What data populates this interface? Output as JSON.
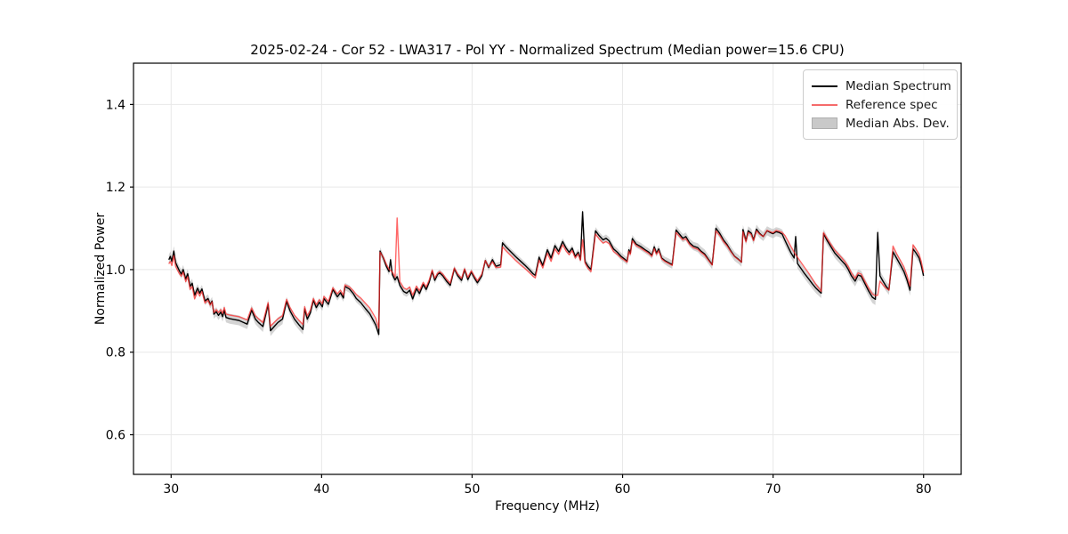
{
  "title": "2025-02-24 - Cor 52 - LWA317 - Pol YY - Normalized Spectrum (Median power=15.6 CPU)",
  "colors": {
    "median_line": "#000000",
    "reference_line": "#ff2b2b",
    "reference_legend": "#f56b6b",
    "mad_band": "#aaaaaa",
    "grid": "#e8e8e8",
    "spine": "#000000",
    "background": "#ffffff"
  },
  "chart_data": {
    "type": "line",
    "title": "2025-02-24 - Cor 52 - LWA317 - Pol YY - Normalized Spectrum (Median power=15.6 CPU)",
    "xlabel": "Frequency (MHz)",
    "ylabel": "Normalized Power",
    "xlim": [
      27.5,
      82.5
    ],
    "ylim": [
      0.504,
      1.5
    ],
    "x_ticks": [
      30,
      40,
      50,
      60,
      70,
      80
    ],
    "x_tick_labels": [
      "30",
      "40",
      "50",
      "60",
      "70",
      "80"
    ],
    "y_ticks": [
      0.6,
      0.8,
      1.0,
      1.2,
      1.4
    ],
    "y_tick_labels": [
      "0.6",
      "0.8",
      "1.0",
      "1.2",
      "1.4"
    ],
    "grid": true,
    "legend_position": "upper right",
    "series": [
      {
        "name": "Median Spectrum",
        "color": "#000000",
        "style": "line"
      },
      {
        "name": "Reference spec",
        "color": "#f56b6b",
        "style": "line"
      },
      {
        "name": "Median Abs. Dev.",
        "color": "#c9c9c9",
        "style": "band"
      }
    ],
    "point_format": [
      "freq_mhz",
      "median",
      "reference",
      "mad"
    ],
    "points": [
      [
        29.85,
        1.024,
        1.014,
        0.012
      ],
      [
        29.95,
        1.032,
        1.02,
        0.012
      ],
      [
        30.05,
        1.02,
        1.01,
        0.012
      ],
      [
        30.18,
        1.045,
        1.034,
        0.012
      ],
      [
        30.3,
        1.017,
        1.008,
        0.012
      ],
      [
        30.42,
        1.007,
        0.999,
        0.011
      ],
      [
        30.55,
        0.997,
        0.99,
        0.011
      ],
      [
        30.68,
        0.989,
        0.984,
        0.011
      ],
      [
        30.8,
        1.0,
        0.994,
        0.011
      ],
      [
        30.97,
        0.977,
        0.971,
        0.011
      ],
      [
        31.1,
        0.99,
        0.983,
        0.011
      ],
      [
        31.26,
        0.959,
        0.952,
        0.011
      ],
      [
        31.4,
        0.967,
        0.959,
        0.011
      ],
      [
        31.56,
        0.938,
        0.929,
        0.011
      ],
      [
        31.76,
        0.955,
        0.947,
        0.01
      ],
      [
        31.9,
        0.943,
        0.936,
        0.01
      ],
      [
        32.05,
        0.953,
        0.947,
        0.01
      ],
      [
        32.25,
        0.924,
        0.919,
        0.01
      ],
      [
        32.45,
        0.93,
        0.926,
        0.01
      ],
      [
        32.6,
        0.916,
        0.914,
        0.01
      ],
      [
        32.72,
        0.924,
        0.922,
        0.01
      ],
      [
        32.84,
        0.892,
        0.896,
        0.011
      ],
      [
        33.0,
        0.898,
        0.903,
        0.011
      ],
      [
        33.15,
        0.889,
        0.896,
        0.011
      ],
      [
        33.3,
        0.897,
        0.903,
        0.011
      ],
      [
        33.42,
        0.886,
        0.894,
        0.012
      ],
      [
        33.53,
        0.902,
        0.908,
        0.012
      ],
      [
        33.65,
        0.884,
        0.892,
        0.012
      ],
      [
        33.9,
        0.881,
        0.89,
        0.012
      ],
      [
        34.2,
        0.879,
        0.888,
        0.012
      ],
      [
        34.5,
        0.877,
        0.886,
        0.012
      ],
      [
        34.8,
        0.872,
        0.882,
        0.012
      ],
      [
        35.05,
        0.868,
        0.878,
        0.012
      ],
      [
        35.35,
        0.902,
        0.907,
        0.012
      ],
      [
        35.6,
        0.88,
        0.888,
        0.012
      ],
      [
        35.8,
        0.872,
        0.881,
        0.012
      ],
      [
        36.1,
        0.862,
        0.872,
        0.013
      ],
      [
        36.45,
        0.916,
        0.92,
        0.012
      ],
      [
        36.6,
        0.852,
        0.863,
        0.013
      ],
      [
        36.85,
        0.862,
        0.872,
        0.012
      ],
      [
        37.1,
        0.872,
        0.881,
        0.012
      ],
      [
        37.4,
        0.88,
        0.888,
        0.012
      ],
      [
        37.67,
        0.923,
        0.928,
        0.011
      ],
      [
        37.9,
        0.9,
        0.908,
        0.011
      ],
      [
        38.2,
        0.88,
        0.889,
        0.012
      ],
      [
        38.5,
        0.866,
        0.877,
        0.012
      ],
      [
        38.76,
        0.855,
        0.867,
        0.012
      ],
      [
        38.87,
        0.905,
        0.91,
        0.011
      ],
      [
        39.05,
        0.88,
        0.888,
        0.011
      ],
      [
        39.25,
        0.895,
        0.902,
        0.01
      ],
      [
        39.45,
        0.926,
        0.93,
        0.01
      ],
      [
        39.65,
        0.908,
        0.915,
        0.01
      ],
      [
        39.85,
        0.921,
        0.927,
        0.01
      ],
      [
        40.05,
        0.91,
        0.917,
        0.01
      ],
      [
        40.15,
        0.93,
        0.935,
        0.009
      ],
      [
        40.45,
        0.916,
        0.923,
        0.009
      ],
      [
        40.75,
        0.952,
        0.956,
        0.009
      ],
      [
        41.05,
        0.934,
        0.941,
        0.009
      ],
      [
        41.25,
        0.944,
        0.95,
        0.009
      ],
      [
        41.45,
        0.931,
        0.938,
        0.009
      ],
      [
        41.55,
        0.959,
        0.963,
        0.009
      ],
      [
        41.85,
        0.953,
        0.958,
        0.009
      ],
      [
        42.1,
        0.942,
        0.949,
        0.009
      ],
      [
        42.3,
        0.93,
        0.94,
        0.009
      ],
      [
        42.6,
        0.92,
        0.931,
        0.009
      ],
      [
        42.9,
        0.906,
        0.919,
        0.01
      ],
      [
        43.2,
        0.893,
        0.907,
        0.01
      ],
      [
        43.6,
        0.866,
        0.882,
        0.01
      ],
      [
        43.8,
        0.843,
        0.858,
        0.01
      ],
      [
        43.88,
        1.045,
        1.042,
        0.009
      ],
      [
        44.1,
        1.028,
        1.03,
        0.009
      ],
      [
        44.3,
        1.008,
        1.013,
        0.009
      ],
      [
        44.48,
        0.995,
        1.001,
        0.009
      ],
      [
        44.58,
        1.024,
        0.998,
        0.009
      ],
      [
        44.7,
        0.988,
        0.994,
        0.009
      ],
      [
        44.88,
        0.975,
        0.982,
        0.009
      ],
      [
        45.02,
        0.983,
        1.125,
        0.009
      ],
      [
        45.2,
        0.962,
        0.971,
        0.009
      ],
      [
        45.45,
        0.947,
        0.956,
        0.009
      ],
      [
        45.65,
        0.943,
        0.952,
        0.009
      ],
      [
        45.85,
        0.95,
        0.958,
        0.009
      ],
      [
        46.05,
        0.929,
        0.938,
        0.009
      ],
      [
        46.3,
        0.954,
        0.96,
        0.009
      ],
      [
        46.5,
        0.942,
        0.949,
        0.009
      ],
      [
        46.75,
        0.964,
        0.969,
        0.008
      ],
      [
        46.95,
        0.952,
        0.958,
        0.008
      ],
      [
        47.15,
        0.97,
        0.975,
        0.008
      ],
      [
        47.35,
        0.996,
        0.999,
        0.008
      ],
      [
        47.52,
        0.974,
        0.979,
        0.008
      ],
      [
        47.7,
        0.988,
        0.991,
        0.008
      ],
      [
        47.85,
        0.992,
        0.995,
        0.008
      ],
      [
        48.05,
        0.985,
        0.989,
        0.008
      ],
      [
        48.3,
        0.972,
        0.977,
        0.008
      ],
      [
        48.55,
        0.962,
        0.967,
        0.008
      ],
      [
        48.82,
        1.002,
        1.004,
        0.008
      ],
      [
        49.05,
        0.985,
        0.989,
        0.008
      ],
      [
        49.3,
        0.974,
        0.979,
        0.008
      ],
      [
        49.5,
        1.0,
        1.002,
        0.008
      ],
      [
        49.72,
        0.976,
        0.981,
        0.008
      ],
      [
        49.95,
        0.994,
        0.997,
        0.008
      ],
      [
        50.15,
        0.98,
        0.984,
        0.008
      ],
      [
        50.35,
        0.968,
        0.973,
        0.008
      ],
      [
        50.65,
        0.985,
        0.989,
        0.008
      ],
      [
        50.88,
        1.022,
        1.022,
        0.008
      ],
      [
        51.1,
        1.005,
        1.007,
        0.008
      ],
      [
        51.35,
        1.024,
        1.019,
        0.008
      ],
      [
        51.58,
        1.008,
        1.005,
        0.008
      ],
      [
        51.9,
        1.012,
        1.006,
        0.008
      ],
      [
        52.02,
        1.065,
        1.055,
        0.008
      ],
      [
        52.3,
        1.053,
        1.044,
        0.008
      ],
      [
        52.6,
        1.042,
        1.033,
        0.008
      ],
      [
        52.9,
        1.031,
        1.022,
        0.008
      ],
      [
        53.2,
        1.021,
        1.012,
        0.008
      ],
      [
        53.5,
        1.011,
        1.003,
        0.008
      ],
      [
        53.8,
        1.0,
        0.993,
        0.008
      ],
      [
        54.05,
        0.99,
        0.984,
        0.008
      ],
      [
        54.2,
        0.986,
        0.98,
        0.008
      ],
      [
        54.45,
        1.03,
        1.023,
        0.008
      ],
      [
        54.7,
        1.01,
        1.004,
        0.008
      ],
      [
        55.0,
        1.048,
        1.04,
        0.008
      ],
      [
        55.25,
        1.028,
        1.02,
        0.008
      ],
      [
        55.5,
        1.058,
        1.05,
        0.008
      ],
      [
        55.75,
        1.044,
        1.037,
        0.008
      ],
      [
        56.02,
        1.068,
        1.06,
        0.008
      ],
      [
        56.25,
        1.052,
        1.045,
        0.008
      ],
      [
        56.45,
        1.042,
        1.036,
        0.008
      ],
      [
        56.65,
        1.052,
        1.046,
        0.008
      ],
      [
        56.85,
        1.032,
        1.028,
        0.008
      ],
      [
        57.05,
        1.042,
        1.038,
        0.008
      ],
      [
        57.2,
        1.024,
        1.022,
        0.009
      ],
      [
        57.34,
        1.14,
        1.072,
        0.009
      ],
      [
        57.5,
        1.02,
        1.016,
        0.009
      ],
      [
        57.7,
        1.008,
        1.003,
        0.009
      ],
      [
        57.9,
        1.0,
        0.995,
        0.009
      ],
      [
        58.2,
        1.094,
        1.086,
        0.009
      ],
      [
        58.45,
        1.082,
        1.074,
        0.009
      ],
      [
        58.7,
        1.072,
        1.064,
        0.009
      ],
      [
        58.9,
        1.076,
        1.068,
        0.009
      ],
      [
        59.1,
        1.07,
        1.063,
        0.009
      ],
      [
        59.4,
        1.05,
        1.044,
        0.009
      ],
      [
        59.65,
        1.042,
        1.037,
        0.009
      ],
      [
        59.9,
        1.032,
        1.028,
        0.009
      ],
      [
        60.15,
        1.025,
        1.022,
        0.009
      ],
      [
        60.3,
        1.02,
        1.018,
        0.009
      ],
      [
        60.42,
        1.048,
        1.044,
        0.009
      ],
      [
        60.52,
        1.04,
        1.037,
        0.009
      ],
      [
        60.65,
        1.075,
        1.07,
        0.009
      ],
      [
        60.9,
        1.062,
        1.058,
        0.009
      ],
      [
        61.2,
        1.056,
        1.052,
        0.009
      ],
      [
        61.5,
        1.048,
        1.045,
        0.009
      ],
      [
        61.75,
        1.042,
        1.039,
        0.009
      ],
      [
        61.95,
        1.035,
        1.032,
        0.009
      ],
      [
        62.1,
        1.055,
        1.051,
        0.009
      ],
      [
        62.25,
        1.04,
        1.037,
        0.009
      ],
      [
        62.4,
        1.05,
        1.046,
        0.009
      ],
      [
        62.6,
        1.028,
        1.026,
        0.009
      ],
      [
        62.8,
        1.022,
        1.02,
        0.009
      ],
      [
        63.0,
        1.018,
        1.016,
        0.01
      ],
      [
        63.3,
        1.012,
        1.01,
        0.01
      ],
      [
        63.55,
        1.096,
        1.09,
        0.01
      ],
      [
        63.8,
        1.085,
        1.08,
        0.01
      ],
      [
        64.0,
        1.076,
        1.072,
        0.01
      ],
      [
        64.2,
        1.08,
        1.075,
        0.01
      ],
      [
        64.45,
        1.065,
        1.061,
        0.01
      ],
      [
        64.7,
        1.057,
        1.053,
        0.01
      ],
      [
        65.0,
        1.053,
        1.049,
        0.011
      ],
      [
        65.2,
        1.045,
        1.042,
        0.011
      ],
      [
        65.45,
        1.038,
        1.035,
        0.011
      ],
      [
        65.7,
        1.025,
        1.023,
        0.011
      ],
      [
        65.95,
        1.012,
        1.011,
        0.011
      ],
      [
        66.2,
        1.1,
        1.094,
        0.011
      ],
      [
        66.45,
        1.088,
        1.083,
        0.011
      ],
      [
        66.7,
        1.072,
        1.068,
        0.011
      ],
      [
        66.95,
        1.06,
        1.057,
        0.011
      ],
      [
        67.2,
        1.045,
        1.043,
        0.011
      ],
      [
        67.45,
        1.032,
        1.031,
        0.011
      ],
      [
        67.7,
        1.025,
        1.024,
        0.011
      ],
      [
        67.9,
        1.018,
        1.018,
        0.011
      ],
      [
        68.0,
        1.097,
        1.092,
        0.011
      ],
      [
        68.2,
        1.07,
        1.067,
        0.011
      ],
      [
        68.35,
        1.094,
        1.09,
        0.011
      ],
      [
        68.55,
        1.088,
        1.085,
        0.011
      ],
      [
        68.7,
        1.072,
        1.07,
        0.011
      ],
      [
        68.9,
        1.098,
        1.094,
        0.011
      ],
      [
        69.1,
        1.088,
        1.086,
        0.011
      ],
      [
        69.35,
        1.08,
        1.08,
        0.011
      ],
      [
        69.6,
        1.094,
        1.095,
        0.011
      ],
      [
        69.8,
        1.09,
        1.092,
        0.011
      ],
      [
        70.0,
        1.087,
        1.089,
        0.011
      ],
      [
        70.2,
        1.092,
        1.095,
        0.011
      ],
      [
        70.4,
        1.09,
        1.093,
        0.011
      ],
      [
        70.6,
        1.086,
        1.09,
        0.011
      ],
      [
        70.8,
        1.07,
        1.082,
        0.012
      ],
      [
        71.0,
        1.055,
        1.069,
        0.012
      ],
      [
        71.2,
        1.04,
        1.055,
        0.012
      ],
      [
        71.4,
        1.028,
        1.042,
        0.012
      ],
      [
        71.5,
        1.08,
        1.036,
        0.012
      ],
      [
        71.62,
        1.015,
        1.03,
        0.012
      ],
      [
        71.85,
        1.003,
        1.018,
        0.012
      ],
      [
        72.1,
        0.99,
        1.005,
        0.012
      ],
      [
        72.35,
        0.978,
        0.992,
        0.012
      ],
      [
        72.6,
        0.966,
        0.978,
        0.012
      ],
      [
        72.85,
        0.955,
        0.964,
        0.012
      ],
      [
        73.1,
        0.946,
        0.952,
        0.012
      ],
      [
        73.2,
        0.943,
        0.947,
        0.012
      ],
      [
        73.35,
        1.087,
        1.09,
        0.011
      ],
      [
        73.6,
        1.07,
        1.075,
        0.011
      ],
      [
        73.85,
        1.055,
        1.061,
        0.011
      ],
      [
        74.1,
        1.04,
        1.047,
        0.012
      ],
      [
        74.35,
        1.03,
        1.037,
        0.012
      ],
      [
        74.6,
        1.02,
        1.027,
        0.012
      ],
      [
        74.8,
        1.012,
        1.018,
        0.012
      ],
      [
        75.0,
        1.0,
        1.007,
        0.012
      ],
      [
        75.2,
        0.985,
        0.992,
        0.013
      ],
      [
        75.45,
        0.972,
        0.979,
        0.013
      ],
      [
        75.65,
        0.987,
        0.992,
        0.013
      ],
      [
        75.85,
        0.984,
        0.989,
        0.013
      ],
      [
        76.1,
        0.966,
        0.972,
        0.013
      ],
      [
        76.35,
        0.948,
        0.955,
        0.013
      ],
      [
        76.6,
        0.933,
        0.941,
        0.014
      ],
      [
        76.8,
        0.928,
        0.937,
        0.014
      ],
      [
        76.95,
        1.09,
        0.938,
        0.012
      ],
      [
        77.1,
        0.985,
        0.972,
        0.012
      ],
      [
        77.3,
        0.972,
        0.963,
        0.012
      ],
      [
        77.5,
        0.96,
        0.955,
        0.012
      ],
      [
        77.7,
        0.951,
        0.95,
        0.012
      ],
      [
        77.97,
        1.043,
        1.057,
        0.012
      ],
      [
        78.2,
        1.028,
        1.039,
        0.012
      ],
      [
        78.45,
        1.012,
        1.023,
        0.012
      ],
      [
        78.7,
        0.995,
        1.006,
        0.013
      ],
      [
        78.9,
        0.975,
        0.986,
        0.013
      ],
      [
        79.1,
        0.95,
        0.96,
        0.013
      ],
      [
        79.3,
        1.05,
        1.06,
        0.012
      ],
      [
        79.5,
        1.04,
        1.049,
        0.012
      ],
      [
        79.7,
        1.028,
        1.037,
        0.012
      ],
      [
        79.85,
        1.01,
        1.019,
        0.012
      ],
      [
        80.0,
        0.985,
        0.993,
        0.012
      ]
    ]
  }
}
